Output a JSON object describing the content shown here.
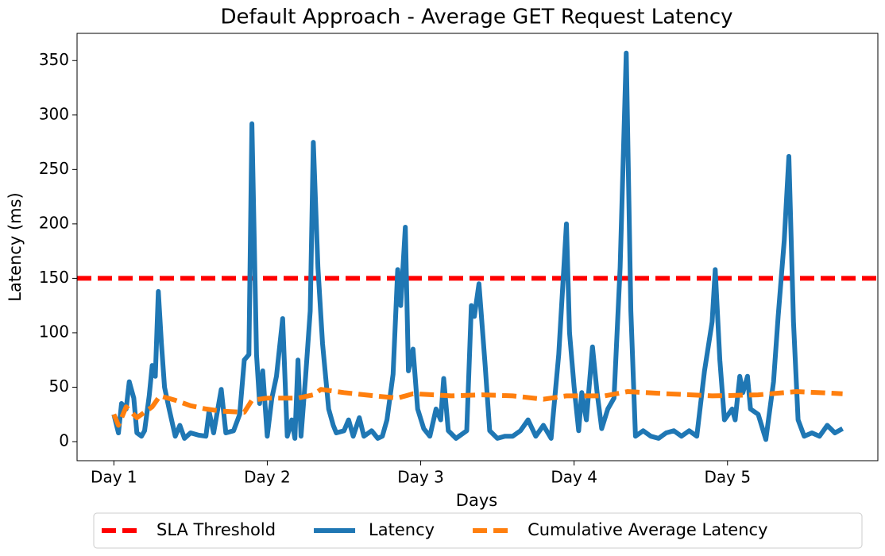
{
  "chart_data": {
    "type": "line",
    "title": "Default Approach - Average GET Request Latency",
    "x_label": "Days",
    "y_label": "Latency (ms)",
    "xlim": [
      0.76,
      5.98
    ],
    "ylim": [
      -17.5,
      375
    ],
    "xticks": [
      {
        "value": 1,
        "label": "Day 1"
      },
      {
        "value": 2,
        "label": "Day 2"
      },
      {
        "value": 3,
        "label": "Day 3"
      },
      {
        "value": 4,
        "label": "Day 4"
      },
      {
        "value": 5,
        "label": "Day 5"
      }
    ],
    "yticks": [
      0,
      50,
      100,
      150,
      200,
      250,
      300,
      350
    ],
    "hlines": [
      {
        "name": "SLA Threshold",
        "y": 150,
        "color": "#ff0000",
        "style": "dashed"
      }
    ],
    "series": [
      {
        "name": "Latency",
        "color": "#1f77b4",
        "style": "solid",
        "x": [
          1.0,
          1.03,
          1.05,
          1.08,
          1.1,
          1.13,
          1.15,
          1.18,
          1.2,
          1.23,
          1.25,
          1.27,
          1.29,
          1.31,
          1.33,
          1.36,
          1.4,
          1.43,
          1.46,
          1.5,
          1.55,
          1.6,
          1.62,
          1.65,
          1.7,
          1.73,
          1.78,
          1.82,
          1.85,
          1.88,
          1.9,
          1.93,
          1.95,
          1.97,
          2.0,
          2.03,
          2.06,
          2.1,
          2.13,
          2.16,
          2.18,
          2.2,
          2.22,
          2.25,
          2.28,
          2.3,
          2.33,
          2.36,
          2.4,
          2.43,
          2.45,
          2.5,
          2.53,
          2.56,
          2.6,
          2.63,
          2.68,
          2.72,
          2.75,
          2.78,
          2.82,
          2.85,
          2.87,
          2.9,
          2.92,
          2.95,
          2.98,
          3.02,
          3.06,
          3.1,
          3.13,
          3.15,
          3.18,
          3.23,
          3.3,
          3.33,
          3.35,
          3.38,
          3.42,
          3.45,
          3.5,
          3.55,
          3.6,
          3.65,
          3.7,
          3.75,
          3.8,
          3.85,
          3.9,
          3.95,
          3.97,
          4.0,
          4.03,
          4.05,
          4.08,
          4.12,
          4.15,
          4.18,
          4.22,
          4.26,
          4.3,
          4.34,
          4.37,
          4.4,
          4.45,
          4.5,
          4.55,
          4.6,
          4.65,
          4.7,
          4.75,
          4.8,
          4.85,
          4.9,
          4.92,
          4.95,
          4.98,
          5.03,
          5.05,
          5.08,
          5.1,
          5.13,
          5.15,
          5.2,
          5.25,
          5.3,
          5.33,
          5.37,
          5.4,
          5.43,
          5.46,
          5.5,
          5.55,
          5.6,
          5.65,
          5.7,
          5.75
        ],
        "values": [
          25,
          8,
          35,
          30,
          55,
          40,
          8,
          5,
          10,
          42,
          70,
          60,
          138,
          90,
          50,
          30,
          5,
          15,
          3,
          8,
          6,
          5,
          28,
          8,
          48,
          8,
          10,
          25,
          75,
          80,
          292,
          80,
          35,
          65,
          5,
          40,
          60,
          113,
          5,
          20,
          3,
          75,
          5,
          60,
          120,
          275,
          160,
          90,
          30,
          15,
          8,
          10,
          20,
          5,
          22,
          5,
          10,
          3,
          5,
          20,
          62,
          158,
          125,
          197,
          65,
          85,
          30,
          12,
          5,
          30,
          20,
          58,
          10,
          3,
          10,
          125,
          115,
          145,
          70,
          10,
          3,
          5,
          5,
          10,
          20,
          5,
          15,
          3,
          80,
          200,
          100,
          50,
          10,
          45,
          20,
          87,
          45,
          12,
          30,
          40,
          160,
          357,
          120,
          5,
          10,
          5,
          3,
          8,
          10,
          5,
          10,
          5,
          65,
          110,
          158,
          75,
          20,
          30,
          20,
          60,
          45,
          60,
          30,
          25,
          2,
          55,
          115,
          185,
          262,
          110,
          20,
          5,
          8,
          5,
          15,
          8,
          12
        ]
      },
      {
        "name": "Cumulative Average Latency",
        "color": "#ff7f0e",
        "style": "dashed",
        "x": [
          1.0,
          1.03,
          1.08,
          1.15,
          1.25,
          1.3,
          1.4,
          1.5,
          1.6,
          1.7,
          1.85,
          1.9,
          2.0,
          2.2,
          2.3,
          2.35,
          2.5,
          2.7,
          2.85,
          2.95,
          3.2,
          3.4,
          3.6,
          3.8,
          3.95,
          4.2,
          4.35,
          4.6,
          4.9,
          5.2,
          5.45,
          5.75
        ],
        "values": [
          25,
          15,
          32,
          22,
          32,
          42,
          38,
          33,
          30,
          28,
          27,
          38,
          40,
          40,
          43,
          48,
          45,
          42,
          40,
          44,
          42,
          43,
          42,
          39,
          42,
          42,
          46,
          44,
          42,
          43,
          46,
          44
        ]
      }
    ]
  }
}
